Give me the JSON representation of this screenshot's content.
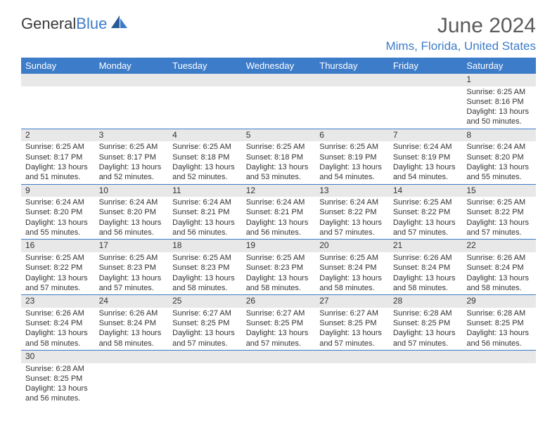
{
  "logo": {
    "text1": "General",
    "text2": "Blue"
  },
  "title": "June 2024",
  "location": "Mims, Florida, United States",
  "columns": [
    "Sunday",
    "Monday",
    "Tuesday",
    "Wednesday",
    "Thursday",
    "Friday",
    "Saturday"
  ],
  "colors": {
    "header_bg": "#3d7cc9",
    "header_text": "#ffffff",
    "accent": "#3d7cc9",
    "daynum_bg": "#e8e8e8",
    "text": "#333333"
  },
  "weeks": [
    [
      null,
      null,
      null,
      null,
      null,
      null,
      {
        "n": "1",
        "sunrise": "6:25 AM",
        "sunset": "8:16 PM",
        "daylight": "13 hours and 50 minutes."
      }
    ],
    [
      {
        "n": "2",
        "sunrise": "6:25 AM",
        "sunset": "8:17 PM",
        "daylight": "13 hours and 51 minutes."
      },
      {
        "n": "3",
        "sunrise": "6:25 AM",
        "sunset": "8:17 PM",
        "daylight": "13 hours and 52 minutes."
      },
      {
        "n": "4",
        "sunrise": "6:25 AM",
        "sunset": "8:18 PM",
        "daylight": "13 hours and 52 minutes."
      },
      {
        "n": "5",
        "sunrise": "6:25 AM",
        "sunset": "8:18 PM",
        "daylight": "13 hours and 53 minutes."
      },
      {
        "n": "6",
        "sunrise": "6:25 AM",
        "sunset": "8:19 PM",
        "daylight": "13 hours and 54 minutes."
      },
      {
        "n": "7",
        "sunrise": "6:24 AM",
        "sunset": "8:19 PM",
        "daylight": "13 hours and 54 minutes."
      },
      {
        "n": "8",
        "sunrise": "6:24 AM",
        "sunset": "8:20 PM",
        "daylight": "13 hours and 55 minutes."
      }
    ],
    [
      {
        "n": "9",
        "sunrise": "6:24 AM",
        "sunset": "8:20 PM",
        "daylight": "13 hours and 55 minutes."
      },
      {
        "n": "10",
        "sunrise": "6:24 AM",
        "sunset": "8:20 PM",
        "daylight": "13 hours and 56 minutes."
      },
      {
        "n": "11",
        "sunrise": "6:24 AM",
        "sunset": "8:21 PM",
        "daylight": "13 hours and 56 minutes."
      },
      {
        "n": "12",
        "sunrise": "6:24 AM",
        "sunset": "8:21 PM",
        "daylight": "13 hours and 56 minutes."
      },
      {
        "n": "13",
        "sunrise": "6:24 AM",
        "sunset": "8:22 PM",
        "daylight": "13 hours and 57 minutes."
      },
      {
        "n": "14",
        "sunrise": "6:25 AM",
        "sunset": "8:22 PM",
        "daylight": "13 hours and 57 minutes."
      },
      {
        "n": "15",
        "sunrise": "6:25 AM",
        "sunset": "8:22 PM",
        "daylight": "13 hours and 57 minutes."
      }
    ],
    [
      {
        "n": "16",
        "sunrise": "6:25 AM",
        "sunset": "8:22 PM",
        "daylight": "13 hours and 57 minutes."
      },
      {
        "n": "17",
        "sunrise": "6:25 AM",
        "sunset": "8:23 PM",
        "daylight": "13 hours and 57 minutes."
      },
      {
        "n": "18",
        "sunrise": "6:25 AM",
        "sunset": "8:23 PM",
        "daylight": "13 hours and 58 minutes."
      },
      {
        "n": "19",
        "sunrise": "6:25 AM",
        "sunset": "8:23 PM",
        "daylight": "13 hours and 58 minutes."
      },
      {
        "n": "20",
        "sunrise": "6:25 AM",
        "sunset": "8:24 PM",
        "daylight": "13 hours and 58 minutes."
      },
      {
        "n": "21",
        "sunrise": "6:26 AM",
        "sunset": "8:24 PM",
        "daylight": "13 hours and 58 minutes."
      },
      {
        "n": "22",
        "sunrise": "6:26 AM",
        "sunset": "8:24 PM",
        "daylight": "13 hours and 58 minutes."
      }
    ],
    [
      {
        "n": "23",
        "sunrise": "6:26 AM",
        "sunset": "8:24 PM",
        "daylight": "13 hours and 58 minutes."
      },
      {
        "n": "24",
        "sunrise": "6:26 AM",
        "sunset": "8:24 PM",
        "daylight": "13 hours and 58 minutes."
      },
      {
        "n": "25",
        "sunrise": "6:27 AM",
        "sunset": "8:25 PM",
        "daylight": "13 hours and 57 minutes."
      },
      {
        "n": "26",
        "sunrise": "6:27 AM",
        "sunset": "8:25 PM",
        "daylight": "13 hours and 57 minutes."
      },
      {
        "n": "27",
        "sunrise": "6:27 AM",
        "sunset": "8:25 PM",
        "daylight": "13 hours and 57 minutes."
      },
      {
        "n": "28",
        "sunrise": "6:28 AM",
        "sunset": "8:25 PM",
        "daylight": "13 hours and 57 minutes."
      },
      {
        "n": "29",
        "sunrise": "6:28 AM",
        "sunset": "8:25 PM",
        "daylight": "13 hours and 56 minutes."
      }
    ],
    [
      {
        "n": "30",
        "sunrise": "6:28 AM",
        "sunset": "8:25 PM",
        "daylight": "13 hours and 56 minutes."
      },
      null,
      null,
      null,
      null,
      null,
      null
    ]
  ],
  "labels": {
    "sunrise_prefix": "Sunrise: ",
    "sunset_prefix": "Sunset: ",
    "daylight_prefix": "Daylight: "
  }
}
